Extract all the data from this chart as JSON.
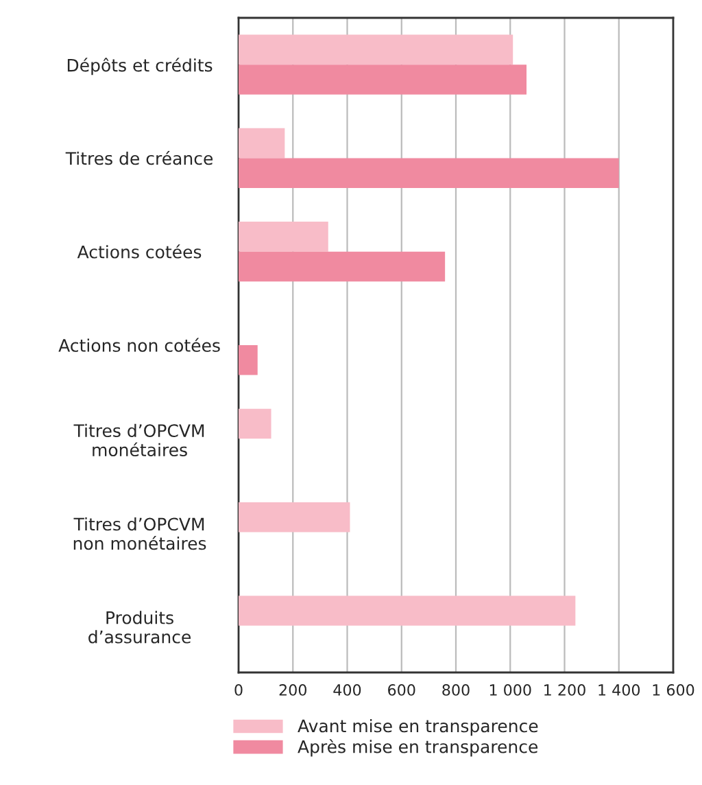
{
  "chart_data": {
    "type": "bar",
    "orientation": "horizontal",
    "categories": [
      "Dépôts et crédits",
      "Titres de créance",
      "Actions cotées",
      "Actions non cotées",
      "Titres d’OPCVM\nmonétaires",
      "Titres d’OPCVM\nnon monétaires",
      "Produits\nd’assurance"
    ],
    "series": [
      {
        "name": "Avant mise en transparence",
        "color": "#f8bcc8",
        "values": [
          1010,
          170,
          330,
          null,
          120,
          410,
          1240
        ]
      },
      {
        "name": "Après mise en transparence",
        "color": "#f08aa0",
        "values": [
          1060,
          1400,
          760,
          70,
          null,
          null,
          null
        ]
      }
    ],
    "xlim": [
      0,
      1600
    ],
    "xticks": [
      0,
      200,
      400,
      600,
      800,
      {
        "value": 1000,
        "label": "1 000"
      },
      {
        "value": 1200,
        "label": "1 200"
      },
      {
        "value": 1400,
        "label": "1 400"
      },
      {
        "value": 1600,
        "label": "1 600"
      }
    ],
    "grid": "x",
    "legend": "bottom"
  }
}
